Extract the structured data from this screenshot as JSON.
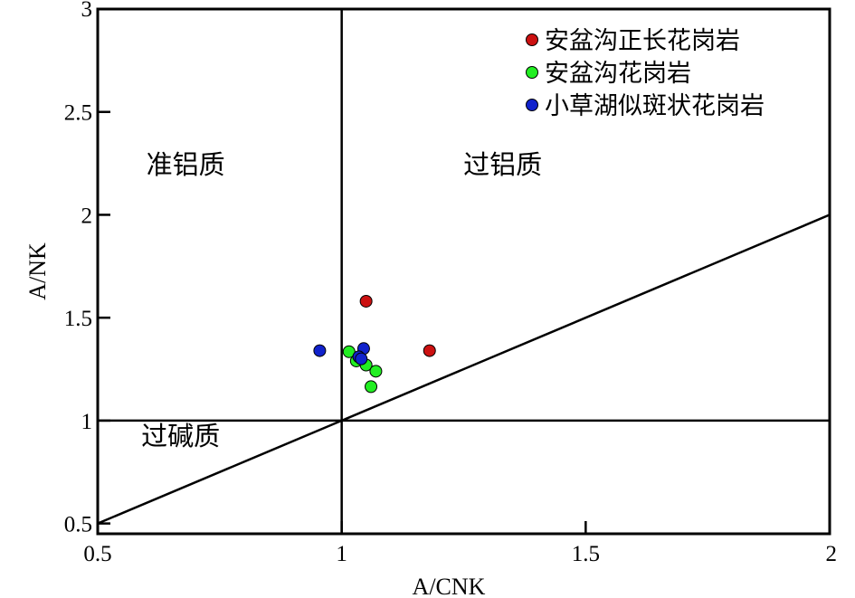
{
  "chart_data": {
    "type": "scatter",
    "xlabel": "A/CNK",
    "ylabel": "A/NK",
    "xlim": [
      0.5,
      2
    ],
    "ylim": [
      0.45,
      3
    ],
    "xticks": [
      "0.5",
      "1",
      "1.5",
      "2"
    ],
    "yticks": [
      "0.5",
      "1",
      "1.5",
      "2",
      "2.5",
      "3"
    ],
    "grid": false,
    "legend_position": "top-right",
    "reference_lines": [
      {
        "type": "vertical",
        "x": 1
      },
      {
        "type": "horizontal",
        "y": 1
      },
      {
        "type": "line",
        "from": [
          0.5,
          0.5
        ],
        "to": [
          2,
          2
        ]
      }
    ],
    "regions": [
      {
        "label": "准铝质",
        "x": 0.68,
        "y": 2.2
      },
      {
        "label": "过铝质",
        "x": 1.33,
        "y": 2.2
      },
      {
        "label": "过碱质",
        "x": 0.67,
        "y": 0.88
      }
    ],
    "series": [
      {
        "name": "安盆沟正长花岗岩",
        "color": "#cc1111",
        "points": [
          [
            1.05,
            1.58
          ],
          [
            1.18,
            1.34
          ]
        ]
      },
      {
        "name": "安盆沟花岗岩",
        "color": "#22ee22",
        "points": [
          [
            1.015,
            1.335
          ],
          [
            1.03,
            1.29
          ],
          [
            1.05,
            1.27
          ],
          [
            1.07,
            1.24
          ],
          [
            1.06,
            1.165
          ]
        ]
      },
      {
        "name": "小草湖似斑状花岗岩",
        "color": "#1122cc",
        "points": [
          [
            0.955,
            1.34
          ],
          [
            1.045,
            1.35
          ],
          [
            1.035,
            1.31
          ],
          [
            1.04,
            1.3
          ]
        ]
      }
    ]
  }
}
